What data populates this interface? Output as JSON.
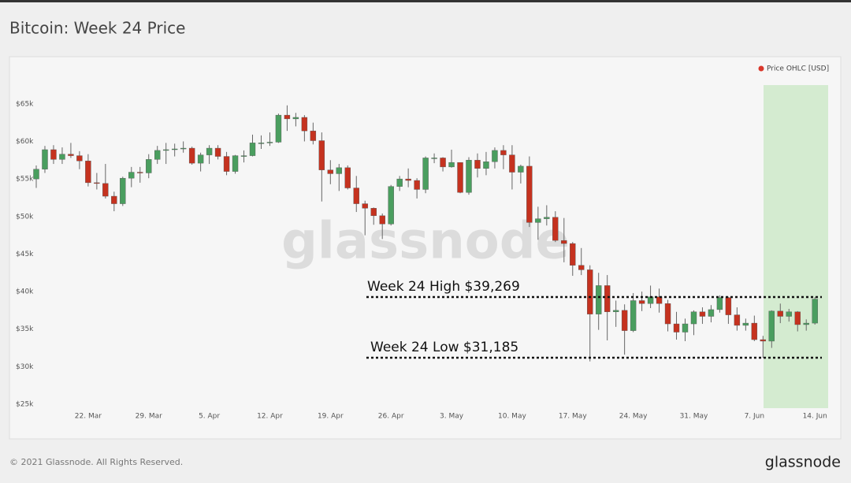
{
  "chart_data": {
    "type": "candlestick",
    "title": "Bitcoin: Week 24 Price",
    "series_name": "Price OHLC [USD]",
    "legend_color": "#d9372b",
    "up_color": "#4a9e5f",
    "down_color": "#c5321f",
    "watermark": "glassnode",
    "categories": [
      null,
      null,
      null,
      null,
      null,
      null,
      "22. Mar",
      null,
      null,
      null,
      null,
      null,
      null,
      "29. Mar",
      null,
      null,
      null,
      null,
      null,
      null,
      "5. Apr",
      null,
      null,
      null,
      null,
      null,
      null,
      "12. Apr",
      null,
      null,
      null,
      null,
      null,
      null,
      "19. Apr",
      null,
      null,
      null,
      null,
      null,
      null,
      "26. Apr",
      null,
      null,
      null,
      null,
      null,
      null,
      "3. May",
      null,
      null,
      null,
      null,
      null,
      null,
      "10. May",
      null,
      null,
      null,
      null,
      null,
      null,
      "17. May",
      null,
      null,
      null,
      null,
      null,
      null,
      "24. May",
      null,
      null,
      null,
      null,
      null,
      null,
      "31. May",
      null,
      null,
      null,
      null,
      null,
      null,
      "7. Jun",
      null,
      null,
      null,
      null,
      null,
      null,
      "14. Jun"
    ],
    "open": [
      55.0,
      56.3,
      58.9,
      57.6,
      58.3,
      58.1,
      57.4,
      54.5,
      54.4,
      52.7,
      51.7,
      55.1,
      55.9,
      55.8,
      57.6,
      58.8,
      58.9,
      59.0,
      59.1,
      57.1,
      58.2,
      59.1,
      58.0,
      56.0,
      58.1,
      58.1,
      59.8,
      59.8,
      59.9,
      63.5,
      63.0,
      63.2,
      61.4,
      60.1,
      56.2,
      55.7,
      56.5,
      53.8,
      51.7,
      51.1,
      50.1,
      49.0,
      54.0,
      55.0,
      54.8,
      53.6,
      57.8,
      57.8,
      56.6,
      57.2,
      53.2,
      57.5,
      56.4,
      57.3,
      58.8,
      58.2,
      55.9,
      56.7,
      49.2,
      49.7,
      49.9,
      46.8,
      46.4,
      43.5,
      42.9,
      37.0,
      40.8,
      37.3,
      37.5,
      34.8,
      38.8,
      38.4,
      39.3,
      38.4,
      35.7,
      34.6,
      35.7,
      37.3,
      36.7,
      37.6,
      39.2,
      36.9,
      35.5,
      35.8,
      33.6,
      33.4,
      37.4,
      36.7,
      37.3,
      35.6,
      35.8
    ],
    "high": [
      56.8,
      59.4,
      59.5,
      59.2,
      59.8,
      58.7,
      58.3,
      55.8,
      57.0,
      53.3,
      55.3,
      56.6,
      56.6,
      58.3,
      59.4,
      59.8,
      59.7,
      60.0,
      59.3,
      58.5,
      59.5,
      59.5,
      58.6,
      58.2,
      58.8,
      60.9,
      60.8,
      61.2,
      63.7,
      64.8,
      63.8,
      63.5,
      62.5,
      61.2,
      57.5,
      57.0,
      56.8,
      55.4,
      52.1,
      51.2,
      50.4,
      54.2,
      55.4,
      56.4,
      55.1,
      58.0,
      58.4,
      57.9,
      58.9,
      57.2,
      57.9,
      58.4,
      58.6,
      59.2,
      59.5,
      59.5,
      56.9,
      58.0,
      51.3,
      51.5,
      50.7,
      49.8,
      46.6,
      45.8,
      43.5,
      42.5,
      42.2,
      38.8,
      38.3,
      39.8,
      40.0,
      40.8,
      40.4,
      38.9,
      37.3,
      36.4,
      37.5,
      37.9,
      38.2,
      39.5,
      39.3,
      37.9,
      36.4,
      36.8,
      34.1,
      37.5,
      38.4,
      37.7,
      37.4,
      36.3,
      39.269
    ],
    "low": [
      53.8,
      55.8,
      57.0,
      57.0,
      57.8,
      56.3,
      54.0,
      53.6,
      52.4,
      50.7,
      51.4,
      53.9,
      54.5,
      55.1,
      57.0,
      57.0,
      58.0,
      58.5,
      56.9,
      56.0,
      57.0,
      57.6,
      55.5,
      55.7,
      57.2,
      58.0,
      59.0,
      59.4,
      59.8,
      61.4,
      62.0,
      60.0,
      59.6,
      52.0,
      54.3,
      53.4,
      53.6,
      50.6,
      47.5,
      48.9,
      47.0,
      48.8,
      53.4,
      53.9,
      52.4,
      53.1,
      57.1,
      56.0,
      56.5,
      53.1,
      52.9,
      55.2,
      55.5,
      56.4,
      56.3,
      53.6,
      54.4,
      48.6,
      46.9,
      48.8,
      46.6,
      43.9,
      42.1,
      42.2,
      30.7,
      34.9,
      33.5,
      35.3,
      31.6,
      34.6,
      37.4,
      37.8,
      37.2,
      34.7,
      33.6,
      33.4,
      34.2,
      35.7,
      35.9,
      37.2,
      35.7,
      34.8,
      34.8,
      33.4,
      31.185,
      32.5,
      35.8,
      36.0,
      34.7,
      34.8,
      35.6
    ],
    "close": [
      56.3,
      58.9,
      57.6,
      58.3,
      58.1,
      57.4,
      54.5,
      54.4,
      52.7,
      51.7,
      55.1,
      55.9,
      55.8,
      57.6,
      58.8,
      58.9,
      59.0,
      59.1,
      57.1,
      58.2,
      59.1,
      58.0,
      56.0,
      58.1,
      58.1,
      59.8,
      59.8,
      59.9,
      63.5,
      63.0,
      63.2,
      61.4,
      60.1,
      56.2,
      55.7,
      56.5,
      53.8,
      51.7,
      51.1,
      50.1,
      49.0,
      54.0,
      55.0,
      54.8,
      53.6,
      57.8,
      57.8,
      56.6,
      57.2,
      53.2,
      57.5,
      56.4,
      57.3,
      58.8,
      58.2,
      55.9,
      56.7,
      49.2,
      49.7,
      49.9,
      46.8,
      46.4,
      43.5,
      42.9,
      37.0,
      40.8,
      37.3,
      37.5,
      34.8,
      38.8,
      38.4,
      39.3,
      38.4,
      35.7,
      34.6,
      35.7,
      37.3,
      36.7,
      37.6,
      39.2,
      36.9,
      35.5,
      35.8,
      33.6,
      33.4,
      37.4,
      36.7,
      37.3,
      35.6,
      35.8,
      39.0
    ],
    "ylim": [
      25,
      67.5
    ],
    "yticks": [
      {
        "value": 25,
        "label": "$25k"
      },
      {
        "value": 30,
        "label": "$30k"
      },
      {
        "value": 35,
        "label": "$35k"
      },
      {
        "value": 40,
        "label": "$40k"
      },
      {
        "value": 45,
        "label": "$45k"
      },
      {
        "value": 50,
        "label": "$50k"
      },
      {
        "value": 55,
        "label": "$55k"
      },
      {
        "value": 60,
        "label": "$60k"
      },
      {
        "value": 65,
        "label": "$65k"
      }
    ],
    "grid": false,
    "annotations": [
      {
        "text": "Week 24 High $39,269",
        "value": 39.269
      },
      {
        "text": "Week 24 Low $31,185",
        "value": 31.185
      }
    ]
  },
  "footer": {
    "copyright": "© 2021 Glassnode. All Rights Reserved.",
    "logo": "glassnode"
  }
}
